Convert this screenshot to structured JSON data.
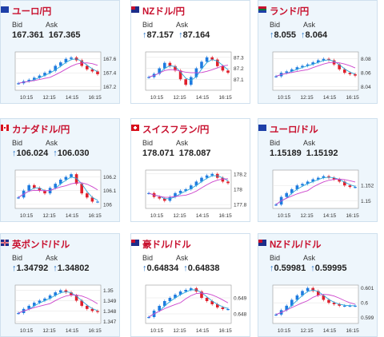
{
  "header": {
    "bid_label": "Bid",
    "ask_label": "Ask"
  },
  "x_ticks": [
    "10:15",
    "12:15",
    "14:15",
    "16:15"
  ],
  "colors": {
    "up": "#1f7be0",
    "down": "#e0202c",
    "ma_short": "#2aa7d9",
    "ma_long": "#cc44cc",
    "title": "#c8102e",
    "arrow": "#2a77c8"
  },
  "cards": [
    {
      "title": "ユーロ/円",
      "flag": "eu-flag",
      "bid": "167.361",
      "ask": "167.365",
      "bid_arrow": "",
      "ask_arrow": "",
      "ticks": [
        "167.6",
        "167.4",
        "167.2"
      ],
      "chart_data": {
        "type": "line",
        "y": [
          167.25,
          167.28,
          167.3,
          167.33,
          167.36,
          167.4,
          167.43,
          167.5,
          167.55,
          167.6,
          167.62,
          167.58,
          167.5,
          167.45,
          167.42,
          167.38
        ],
        "ylim": [
          167.15,
          167.7
        ]
      }
    },
    {
      "title": "NZドル/円",
      "flag": "nz-flag",
      "bid": "87.157",
      "ask": "87.164",
      "bid_arrow": "↑",
      "ask_arrow": "↑",
      "ticks": [
        "87.3",
        "87.2",
        "87.1"
      ],
      "chart_data": {
        "type": "line",
        "y": [
          87.12,
          87.15,
          87.2,
          87.25,
          87.22,
          87.18,
          87.1,
          87.05,
          87.12,
          87.2,
          87.26,
          87.3,
          87.28,
          87.22,
          87.18,
          87.16
        ],
        "ylim": [
          87.0,
          87.35
        ]
      }
    },
    {
      "title": "ランド/円",
      "flag": "za-flag",
      "bid": "8.055",
      "ask": "8.064",
      "bid_arrow": "↑",
      "ask_arrow": "↑",
      "ticks": [
        "8.08",
        "8.06",
        "8.04"
      ],
      "chart_data": {
        "type": "line",
        "y": [
          8.055,
          8.06,
          8.062,
          8.065,
          8.068,
          8.07,
          8.072,
          8.075,
          8.078,
          8.08,
          8.078,
          8.072,
          8.065,
          8.06,
          8.058,
          8.056
        ],
        "ylim": [
          8.035,
          8.09
        ]
      }
    },
    {
      "title": "カナダドル/円",
      "flag": "ca-flag",
      "bid": "106.024",
      "ask": "106.030",
      "bid_arrow": "↑",
      "ask_arrow": "↑",
      "ticks": [
        "106.2",
        "106.1",
        "106"
      ],
      "chart_data": {
        "type": "line",
        "y": [
          106.05,
          106.1,
          106.14,
          106.12,
          106.1,
          106.08,
          106.12,
          106.15,
          106.18,
          106.2,
          106.22,
          106.15,
          106.08,
          106.05,
          106.02,
          106.02
        ],
        "ylim": [
          105.97,
          106.25
        ]
      }
    },
    {
      "title": "スイスフラン/円",
      "flag": "ch-flag",
      "bid": "178.071",
      "ask": "178.087",
      "bid_arrow": "",
      "ask_arrow": "",
      "ticks": [
        "178.2",
        "178",
        "177.8"
      ],
      "chart_data": {
        "type": "line",
        "y": [
          177.95,
          177.9,
          177.88,
          177.85,
          177.9,
          177.95,
          177.98,
          178.0,
          178.05,
          178.1,
          178.15,
          178.18,
          178.2,
          178.15,
          178.1,
          178.08
        ],
        "ylim": [
          177.75,
          178.25
        ]
      }
    },
    {
      "title": "ユーロ/ドル",
      "flag": "eu-us-flag",
      "bid": "1.15189",
      "ask": "1.15192",
      "bid_arrow": "",
      "ask_arrow": "",
      "ticks": [
        "1.152",
        "1.15"
      ],
      "chart_data": {
        "type": "line",
        "y": [
          1.1495,
          1.1505,
          1.151,
          1.1515,
          1.152,
          1.1522,
          1.1525,
          1.1528,
          1.153,
          1.1532,
          1.153,
          1.1528,
          1.1525,
          1.152,
          1.1518,
          1.1518
        ],
        "ylim": [
          1.149,
          1.154
        ]
      }
    },
    {
      "title": "英ポンド/ドル",
      "flag": "gb-us-flag",
      "bid": "1.34792",
      "ask": "1.34802",
      "bid_arrow": "↑",
      "ask_arrow": "↑",
      "ticks": [
        "1.35",
        "1.349",
        "1.348",
        "1.347"
      ],
      "chart_data": {
        "type": "line",
        "y": [
          1.3478,
          1.3482,
          1.3485,
          1.3488,
          1.349,
          1.3492,
          1.3495,
          1.3498,
          1.35,
          1.3498,
          1.3495,
          1.349,
          1.3485,
          1.3482,
          1.348,
          1.3479
        ],
        "ylim": [
          1.3468,
          1.3505
        ]
      }
    },
    {
      "title": "豪ドル/ドル",
      "flag": "au-us-flag",
      "bid": "0.64834",
      "ask": "0.64838",
      "bid_arrow": "↑",
      "ask_arrow": "↑",
      "ticks": [
        "0.649",
        "0.648"
      ],
      "chart_data": {
        "type": "line",
        "y": [
          0.6478,
          0.6482,
          0.6485,
          0.6488,
          0.649,
          0.6492,
          0.6494,
          0.6495,
          0.6496,
          0.6494,
          0.649,
          0.6488,
          0.6486,
          0.6484,
          0.6483,
          0.6483
        ],
        "ylim": [
          0.6474,
          0.6498
        ]
      }
    },
    {
      "title": "NZドル/ドル",
      "flag": "nz-us-flag",
      "bid": "0.59981",
      "ask": "0.59995",
      "bid_arrow": "↑",
      "ask_arrow": "↑",
      "ticks": [
        "0.601",
        "0.6",
        "0.599"
      ],
      "chart_data": {
        "type": "line",
        "y": [
          0.5992,
          0.5995,
          0.5998,
          0.6002,
          0.6005,
          0.6008,
          0.601,
          0.6008,
          0.6005,
          0.6002,
          0.6,
          0.5999,
          0.5998,
          0.5998,
          0.5998,
          0.5998
        ],
        "ylim": [
          0.5986,
          0.6012
        ]
      }
    }
  ]
}
